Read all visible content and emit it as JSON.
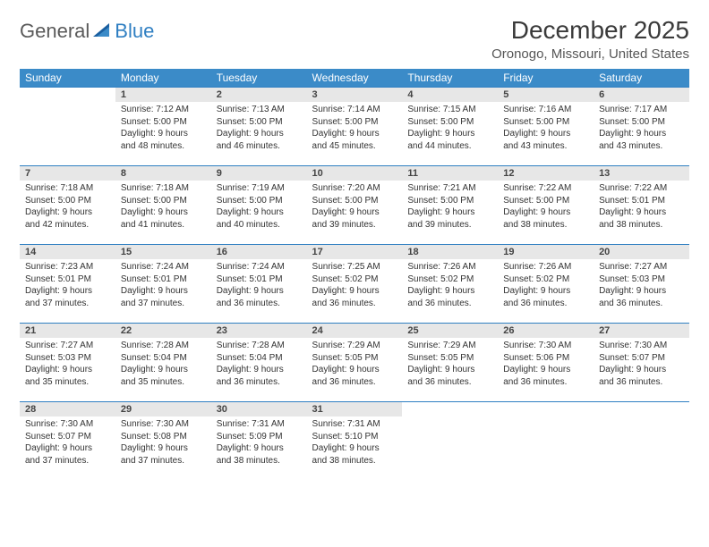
{
  "brand": {
    "word1": "General",
    "word2": "Blue"
  },
  "title": "December 2025",
  "location": "Oronogo, Missouri, United States",
  "colors": {
    "header_bg": "#3b8bc8",
    "header_text": "#ffffff",
    "row_divider": "#2f7fc2",
    "daynum_bg": "#e7e7e7",
    "logo_gray": "#5a5a5a",
    "logo_blue": "#2f7fc2"
  },
  "weekdays": [
    "Sunday",
    "Monday",
    "Tuesday",
    "Wednesday",
    "Thursday",
    "Friday",
    "Saturday"
  ],
  "weeks": [
    [
      {
        "empty": true
      },
      {
        "n": "1",
        "sr": "Sunrise: 7:12 AM",
        "ss": "Sunset: 5:00 PM",
        "dl1": "Daylight: 9 hours",
        "dl2": "and 48 minutes."
      },
      {
        "n": "2",
        "sr": "Sunrise: 7:13 AM",
        "ss": "Sunset: 5:00 PM",
        "dl1": "Daylight: 9 hours",
        "dl2": "and 46 minutes."
      },
      {
        "n": "3",
        "sr": "Sunrise: 7:14 AM",
        "ss": "Sunset: 5:00 PM",
        "dl1": "Daylight: 9 hours",
        "dl2": "and 45 minutes."
      },
      {
        "n": "4",
        "sr": "Sunrise: 7:15 AM",
        "ss": "Sunset: 5:00 PM",
        "dl1": "Daylight: 9 hours",
        "dl2": "and 44 minutes."
      },
      {
        "n": "5",
        "sr": "Sunrise: 7:16 AM",
        "ss": "Sunset: 5:00 PM",
        "dl1": "Daylight: 9 hours",
        "dl2": "and 43 minutes."
      },
      {
        "n": "6",
        "sr": "Sunrise: 7:17 AM",
        "ss": "Sunset: 5:00 PM",
        "dl1": "Daylight: 9 hours",
        "dl2": "and 43 minutes."
      }
    ],
    [
      {
        "n": "7",
        "sr": "Sunrise: 7:18 AM",
        "ss": "Sunset: 5:00 PM",
        "dl1": "Daylight: 9 hours",
        "dl2": "and 42 minutes."
      },
      {
        "n": "8",
        "sr": "Sunrise: 7:18 AM",
        "ss": "Sunset: 5:00 PM",
        "dl1": "Daylight: 9 hours",
        "dl2": "and 41 minutes."
      },
      {
        "n": "9",
        "sr": "Sunrise: 7:19 AM",
        "ss": "Sunset: 5:00 PM",
        "dl1": "Daylight: 9 hours",
        "dl2": "and 40 minutes."
      },
      {
        "n": "10",
        "sr": "Sunrise: 7:20 AM",
        "ss": "Sunset: 5:00 PM",
        "dl1": "Daylight: 9 hours",
        "dl2": "and 39 minutes."
      },
      {
        "n": "11",
        "sr": "Sunrise: 7:21 AM",
        "ss": "Sunset: 5:00 PM",
        "dl1": "Daylight: 9 hours",
        "dl2": "and 39 minutes."
      },
      {
        "n": "12",
        "sr": "Sunrise: 7:22 AM",
        "ss": "Sunset: 5:00 PM",
        "dl1": "Daylight: 9 hours",
        "dl2": "and 38 minutes."
      },
      {
        "n": "13",
        "sr": "Sunrise: 7:22 AM",
        "ss": "Sunset: 5:01 PM",
        "dl1": "Daylight: 9 hours",
        "dl2": "and 38 minutes."
      }
    ],
    [
      {
        "n": "14",
        "sr": "Sunrise: 7:23 AM",
        "ss": "Sunset: 5:01 PM",
        "dl1": "Daylight: 9 hours",
        "dl2": "and 37 minutes."
      },
      {
        "n": "15",
        "sr": "Sunrise: 7:24 AM",
        "ss": "Sunset: 5:01 PM",
        "dl1": "Daylight: 9 hours",
        "dl2": "and 37 minutes."
      },
      {
        "n": "16",
        "sr": "Sunrise: 7:24 AM",
        "ss": "Sunset: 5:01 PM",
        "dl1": "Daylight: 9 hours",
        "dl2": "and 36 minutes."
      },
      {
        "n": "17",
        "sr": "Sunrise: 7:25 AM",
        "ss": "Sunset: 5:02 PM",
        "dl1": "Daylight: 9 hours",
        "dl2": "and 36 minutes."
      },
      {
        "n": "18",
        "sr": "Sunrise: 7:26 AM",
        "ss": "Sunset: 5:02 PM",
        "dl1": "Daylight: 9 hours",
        "dl2": "and 36 minutes."
      },
      {
        "n": "19",
        "sr": "Sunrise: 7:26 AM",
        "ss": "Sunset: 5:02 PM",
        "dl1": "Daylight: 9 hours",
        "dl2": "and 36 minutes."
      },
      {
        "n": "20",
        "sr": "Sunrise: 7:27 AM",
        "ss": "Sunset: 5:03 PM",
        "dl1": "Daylight: 9 hours",
        "dl2": "and 36 minutes."
      }
    ],
    [
      {
        "n": "21",
        "sr": "Sunrise: 7:27 AM",
        "ss": "Sunset: 5:03 PM",
        "dl1": "Daylight: 9 hours",
        "dl2": "and 35 minutes."
      },
      {
        "n": "22",
        "sr": "Sunrise: 7:28 AM",
        "ss": "Sunset: 5:04 PM",
        "dl1": "Daylight: 9 hours",
        "dl2": "and 35 minutes."
      },
      {
        "n": "23",
        "sr": "Sunrise: 7:28 AM",
        "ss": "Sunset: 5:04 PM",
        "dl1": "Daylight: 9 hours",
        "dl2": "and 36 minutes."
      },
      {
        "n": "24",
        "sr": "Sunrise: 7:29 AM",
        "ss": "Sunset: 5:05 PM",
        "dl1": "Daylight: 9 hours",
        "dl2": "and 36 minutes."
      },
      {
        "n": "25",
        "sr": "Sunrise: 7:29 AM",
        "ss": "Sunset: 5:05 PM",
        "dl1": "Daylight: 9 hours",
        "dl2": "and 36 minutes."
      },
      {
        "n": "26",
        "sr": "Sunrise: 7:30 AM",
        "ss": "Sunset: 5:06 PM",
        "dl1": "Daylight: 9 hours",
        "dl2": "and 36 minutes."
      },
      {
        "n": "27",
        "sr": "Sunrise: 7:30 AM",
        "ss": "Sunset: 5:07 PM",
        "dl1": "Daylight: 9 hours",
        "dl2": "and 36 minutes."
      }
    ],
    [
      {
        "n": "28",
        "sr": "Sunrise: 7:30 AM",
        "ss": "Sunset: 5:07 PM",
        "dl1": "Daylight: 9 hours",
        "dl2": "and 37 minutes."
      },
      {
        "n": "29",
        "sr": "Sunrise: 7:30 AM",
        "ss": "Sunset: 5:08 PM",
        "dl1": "Daylight: 9 hours",
        "dl2": "and 37 minutes."
      },
      {
        "n": "30",
        "sr": "Sunrise: 7:31 AM",
        "ss": "Sunset: 5:09 PM",
        "dl1": "Daylight: 9 hours",
        "dl2": "and 38 minutes."
      },
      {
        "n": "31",
        "sr": "Sunrise: 7:31 AM",
        "ss": "Sunset: 5:10 PM",
        "dl1": "Daylight: 9 hours",
        "dl2": "and 38 minutes."
      },
      {
        "empty": true
      },
      {
        "empty": true
      },
      {
        "empty": true
      }
    ]
  ]
}
